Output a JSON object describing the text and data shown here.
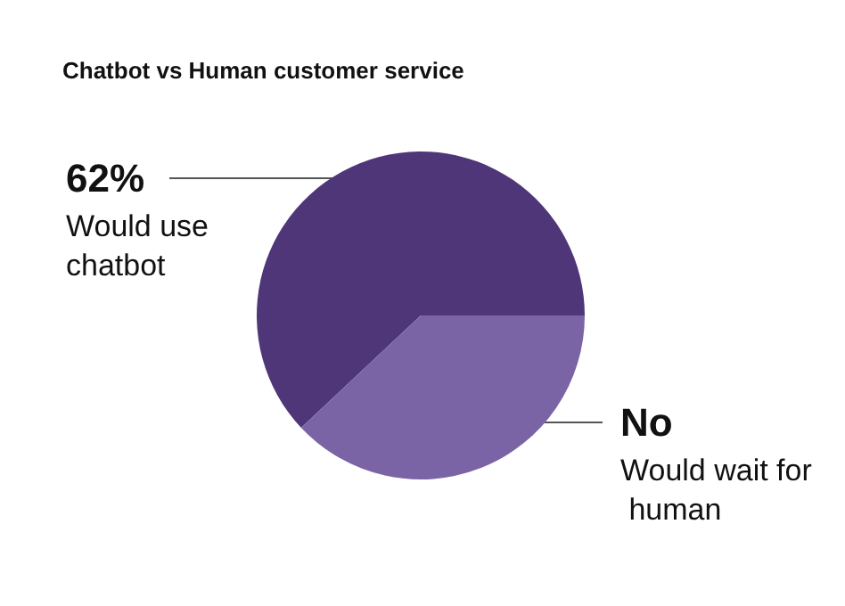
{
  "chart_data": {
    "type": "pie",
    "title": "Chatbot vs Human customer service",
    "categories": [
      "Would use chatbot",
      "Would wait for human"
    ],
    "values": [
      62,
      38
    ],
    "colors": [
      "#4e3679",
      "#7b64a6"
    ],
    "value_labels": [
      "62%",
      "No"
    ],
    "legend": false
  }
}
